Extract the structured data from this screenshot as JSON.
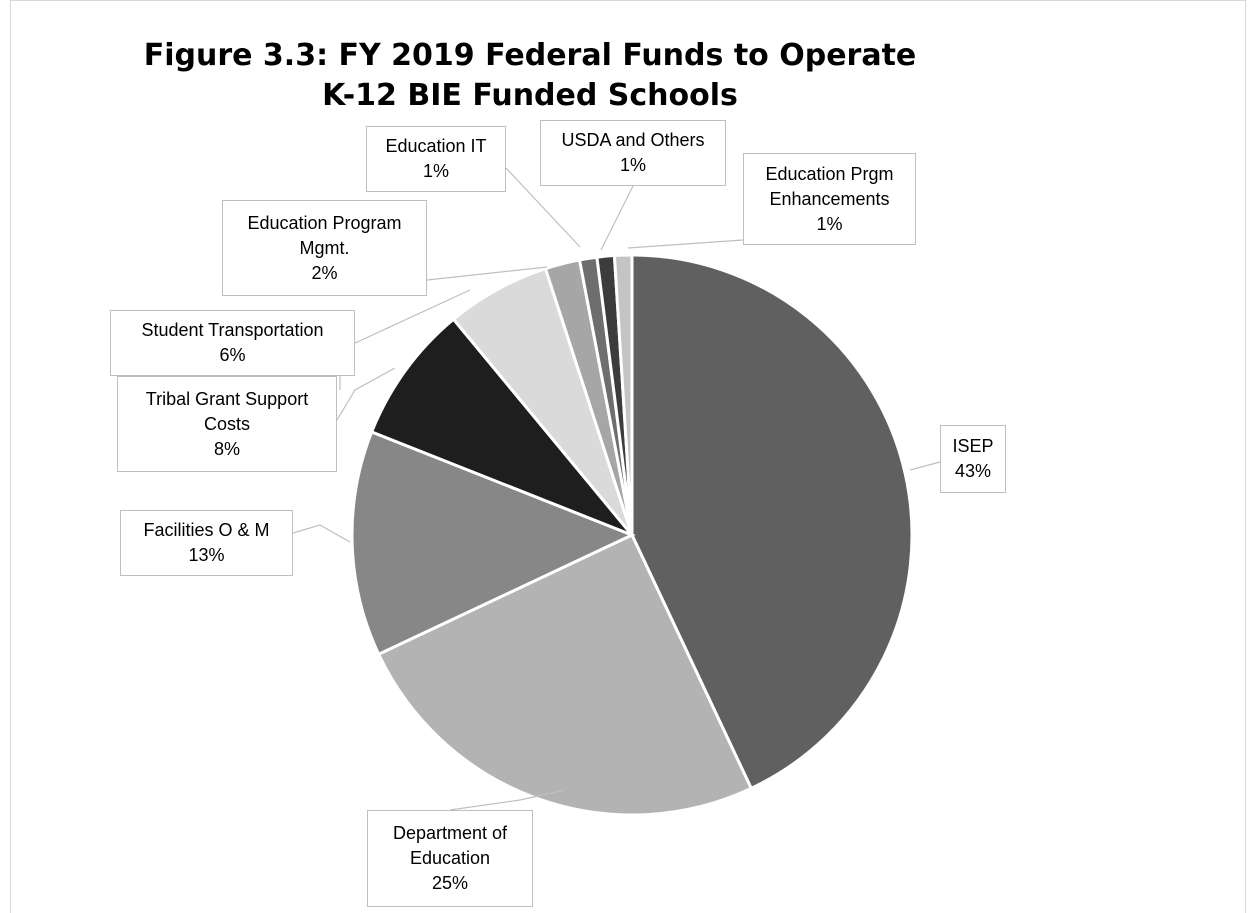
{
  "chart_data": {
    "type": "pie",
    "title_lines": [
      "Figure 3.3:  FY 2019 Federal Funds to Operate",
      "K-12 BIE Funded Schools"
    ],
    "slices": [
      {
        "label_lines": [
          "ISEP"
        ],
        "percent_label": "43%",
        "value": 43,
        "color": "#606060"
      },
      {
        "label_lines": [
          "Department of",
          "Education"
        ],
        "percent_label": "25%",
        "value": 25,
        "color": "#b3b3b3"
      },
      {
        "label_lines": [
          "Facilities O & M"
        ],
        "percent_label": "13%",
        "value": 13,
        "color": "#878787"
      },
      {
        "label_lines": [
          "Tribal Grant Support",
          "Costs"
        ],
        "percent_label": "8%",
        "value": 8,
        "color": "#1e1e1e"
      },
      {
        "label_lines": [
          "Student Transportation"
        ],
        "percent_label": "6%",
        "value": 6,
        "color": "#dadada"
      },
      {
        "label_lines": [
          "Education Program",
          "Mgmt."
        ],
        "percent_label": "2%",
        "value": 2,
        "color": "#a6a6a6"
      },
      {
        "label_lines": [
          "Education IT"
        ],
        "percent_label": "1%",
        "value": 1,
        "color": "#6e6e6e"
      },
      {
        "label_lines": [
          "USDA and Others"
        ],
        "percent_label": "1%",
        "value": 1,
        "color": "#3c3c3c"
      },
      {
        "label_lines": [
          "Education Prgm",
          "Enhancements"
        ],
        "percent_label": "1%",
        "value": 1,
        "color": "#c4c4c4"
      }
    ]
  }
}
